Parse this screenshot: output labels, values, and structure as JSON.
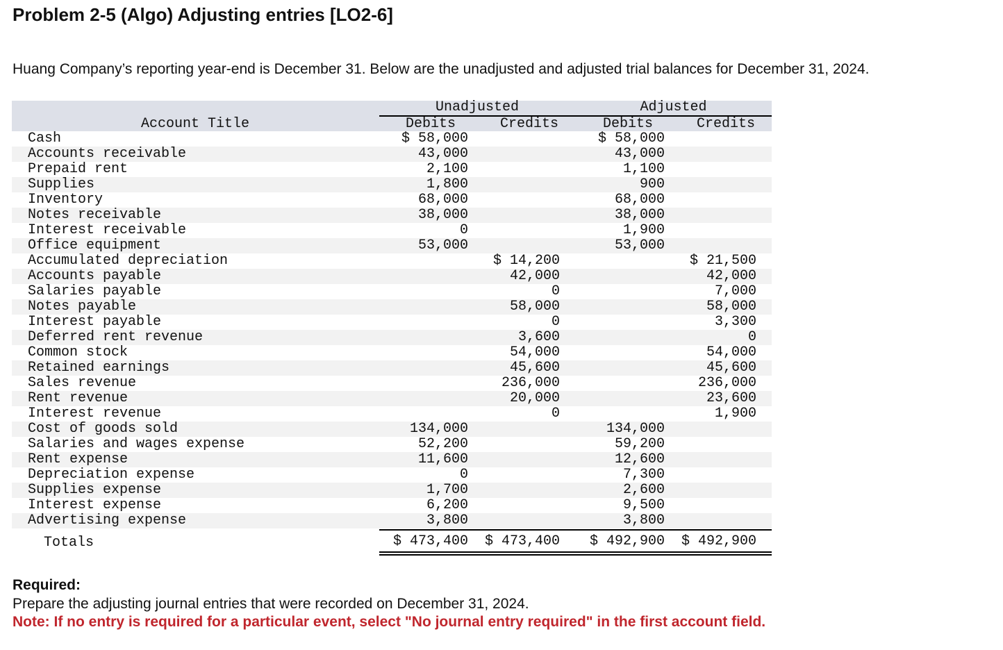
{
  "header": {
    "title": "Problem 2-5 (Algo) Adjusting entries [LO2-6]"
  },
  "intro": "Huang Company’s reporting year-end is December 31. Below are the unadjusted and adjusted trial balances for December 31, 2024.",
  "table": {
    "groups": [
      "Unadjusted",
      "Adjusted"
    ],
    "columns": [
      "Account Title",
      "Debits",
      "Credits",
      "Debits",
      "Credits"
    ],
    "rows": [
      [
        "Cash",
        "$ 58,000",
        null,
        "$ 58,000",
        null
      ],
      [
        "Accounts receivable",
        "43,000",
        null,
        "43,000",
        null
      ],
      [
        "Prepaid rent",
        "2,100",
        null,
        "1,100",
        null
      ],
      [
        "Supplies",
        "1,800",
        null,
        "900",
        null
      ],
      [
        "Inventory",
        "68,000",
        null,
        "68,000",
        null
      ],
      [
        "Notes receivable",
        "38,000",
        null,
        "38,000",
        null
      ],
      [
        "Interest receivable",
        "0",
        null,
        "1,900",
        null
      ],
      [
        "Office equipment",
        "53,000",
        null,
        "53,000",
        null
      ],
      [
        "Accumulated depreciation",
        null,
        "$ 14,200",
        null,
        "$ 21,500"
      ],
      [
        "Accounts payable",
        null,
        "42,000",
        null,
        "42,000"
      ],
      [
        "Salaries payable",
        null,
        "0",
        null,
        "7,000"
      ],
      [
        "Notes payable",
        null,
        "58,000",
        null,
        "58,000"
      ],
      [
        "Interest payable",
        null,
        "0",
        null,
        "3,300"
      ],
      [
        "Deferred rent revenue",
        null,
        "3,600",
        null,
        "0"
      ],
      [
        "Common stock",
        null,
        "54,000",
        null,
        "54,000"
      ],
      [
        "Retained earnings",
        null,
        "45,600",
        null,
        "45,600"
      ],
      [
        "Sales revenue",
        null,
        "236,000",
        null,
        "236,000"
      ],
      [
        "Rent revenue",
        null,
        "20,000",
        null,
        "23,600"
      ],
      [
        "Interest revenue",
        null,
        "0",
        null,
        "1,900"
      ],
      [
        "Cost of goods sold",
        "134,000",
        null,
        "134,000",
        null
      ],
      [
        "Salaries and wages expense",
        "52,200",
        null,
        "59,200",
        null
      ],
      [
        "Rent expense",
        "11,600",
        null,
        "12,600",
        null
      ],
      [
        "Depreciation expense",
        "0",
        null,
        "7,300",
        null
      ],
      [
        "Supplies expense",
        "1,700",
        null,
        "2,600",
        null
      ],
      [
        "Interest expense",
        "6,200",
        null,
        "9,500",
        null
      ],
      [
        "Advertising expense",
        "3,800",
        null,
        "3,800",
        null
      ]
    ],
    "totals": [
      "Totals",
      "$ 473,400",
      "$ 473,400",
      "$ 492,900",
      "$ 492,900"
    ]
  },
  "required": {
    "label": "Required:",
    "text": "Prepare the adjusting journal entries that were recorded on December 31, 2024.",
    "note": "Note: If no entry is required for a particular event, select \"No journal entry required\" in the first account field."
  }
}
